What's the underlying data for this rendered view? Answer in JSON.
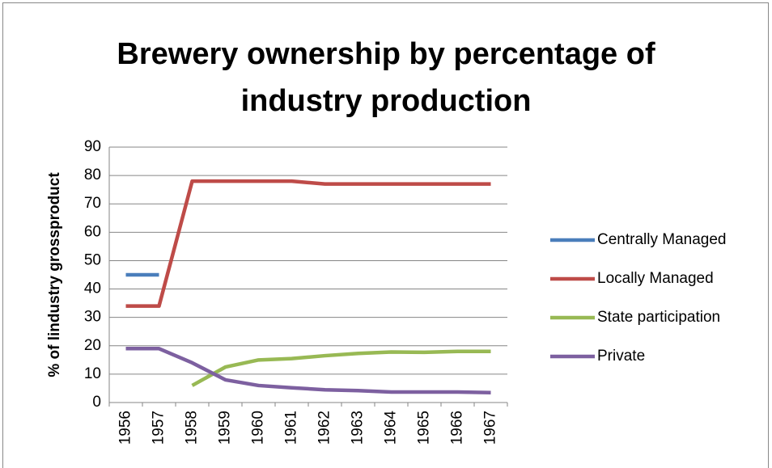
{
  "chart_data": {
    "type": "line",
    "title": "Brewery ownership by percentage of industry production",
    "y_label": "% of lindustry grossproduct",
    "categories": [
      "1956",
      "1957",
      "1958",
      "1959",
      "1960",
      "1961",
      "1962",
      "1963",
      "1964",
      "1965",
      "1966",
      "1967"
    ],
    "series": [
      {
        "name": "Centrally Managed",
        "color": "#4a7ebb",
        "values": [
          45,
          45,
          null,
          null,
          null,
          null,
          null,
          null,
          null,
          null,
          null,
          null
        ]
      },
      {
        "name": "Locally Managed",
        "color": "#be4b48",
        "values": [
          34,
          34,
          78,
          78,
          78,
          78,
          77,
          77,
          77,
          77,
          77,
          77
        ]
      },
      {
        "name": "State participation",
        "color": "#98b954",
        "values": [
          null,
          null,
          6,
          12.5,
          15,
          15.5,
          16.5,
          17.3,
          17.8,
          17.7,
          18,
          18
        ]
      },
      {
        "name": "Private",
        "color": "#7d60a0",
        "values": [
          19,
          19,
          14,
          8,
          6,
          5.2,
          4.5,
          4.2,
          3.7,
          3.7,
          3.7,
          3.5
        ]
      }
    ],
    "ylim": [
      0,
      90
    ],
    "yticks": [
      0,
      10,
      20,
      30,
      40,
      50,
      60,
      70,
      80,
      90
    ],
    "grid": true,
    "legend": "right"
  }
}
